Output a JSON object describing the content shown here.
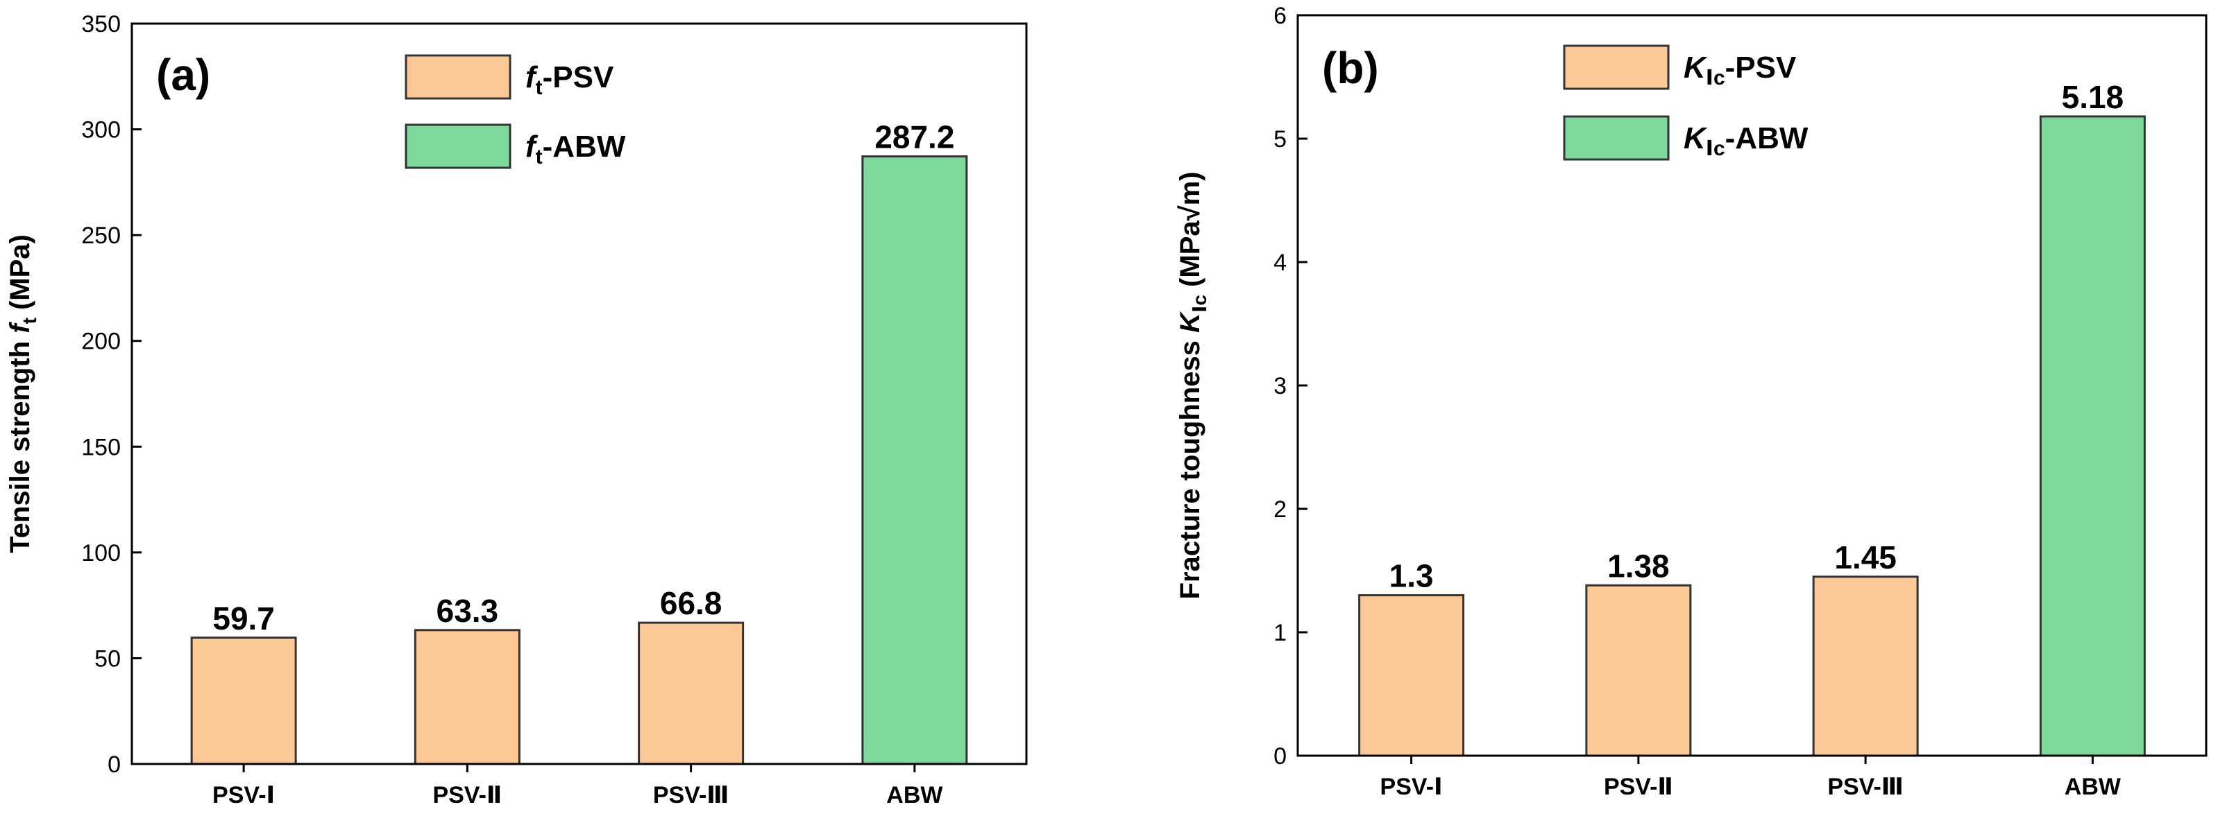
{
  "colors": {
    "psv": "#FCC896",
    "abw": "#7ED99C",
    "stroke": "#333333",
    "axis": "#000000"
  },
  "chart_data": [
    {
      "type": "bar",
      "panel": "(a)",
      "categories": [
        "PSV-Ⅰ",
        "PSV-Ⅱ",
        "PSV-Ⅲ",
        "ABW"
      ],
      "values": [
        59.7,
        63.3,
        66.8,
        287.2
      ],
      "value_labels": [
        "59.7",
        "63.3",
        "66.8",
        "287.2"
      ],
      "series_of_bar": [
        "psv",
        "psv",
        "psv",
        "abw"
      ],
      "ylim": [
        0,
        350
      ],
      "yticks": [
        0,
        50,
        100,
        150,
        200,
        250,
        300,
        350
      ],
      "ylabel": "Tensile strength",
      "ylabel_symbol": "f",
      "ylabel_sub": "t",
      "ylabel_unit": "(MPa)",
      "legend": [
        {
          "symbol": "f",
          "sub": "t",
          "label": "-PSV",
          "series": "psv"
        },
        {
          "symbol": "f",
          "sub": "t",
          "label": "-ABW",
          "series": "abw"
        }
      ]
    },
    {
      "type": "bar",
      "panel": "(b)",
      "categories": [
        "PSV-Ⅰ",
        "PSV-Ⅱ",
        "PSV-Ⅲ",
        "ABW"
      ],
      "values": [
        1.3,
        1.38,
        1.45,
        5.18
      ],
      "value_labels": [
        "1.3",
        "1.38",
        "1.45",
        "5.18"
      ],
      "series_of_bar": [
        "psv",
        "psv",
        "psv",
        "abw"
      ],
      "ylim": [
        0,
        6
      ],
      "yticks": [
        0,
        1,
        2,
        3,
        4,
        5,
        6
      ],
      "ylabel": "Fracture toughness",
      "ylabel_symbol": "K",
      "ylabel_sub": "Ⅰc",
      "ylabel_unit": "(MPa√m)",
      "legend": [
        {
          "symbol": "K",
          "sub": "Ⅰc",
          "label": "-PSV",
          "series": "psv"
        },
        {
          "symbol": "K",
          "sub": "Ⅰc",
          "label": "-ABW",
          "series": "abw"
        }
      ]
    }
  ]
}
